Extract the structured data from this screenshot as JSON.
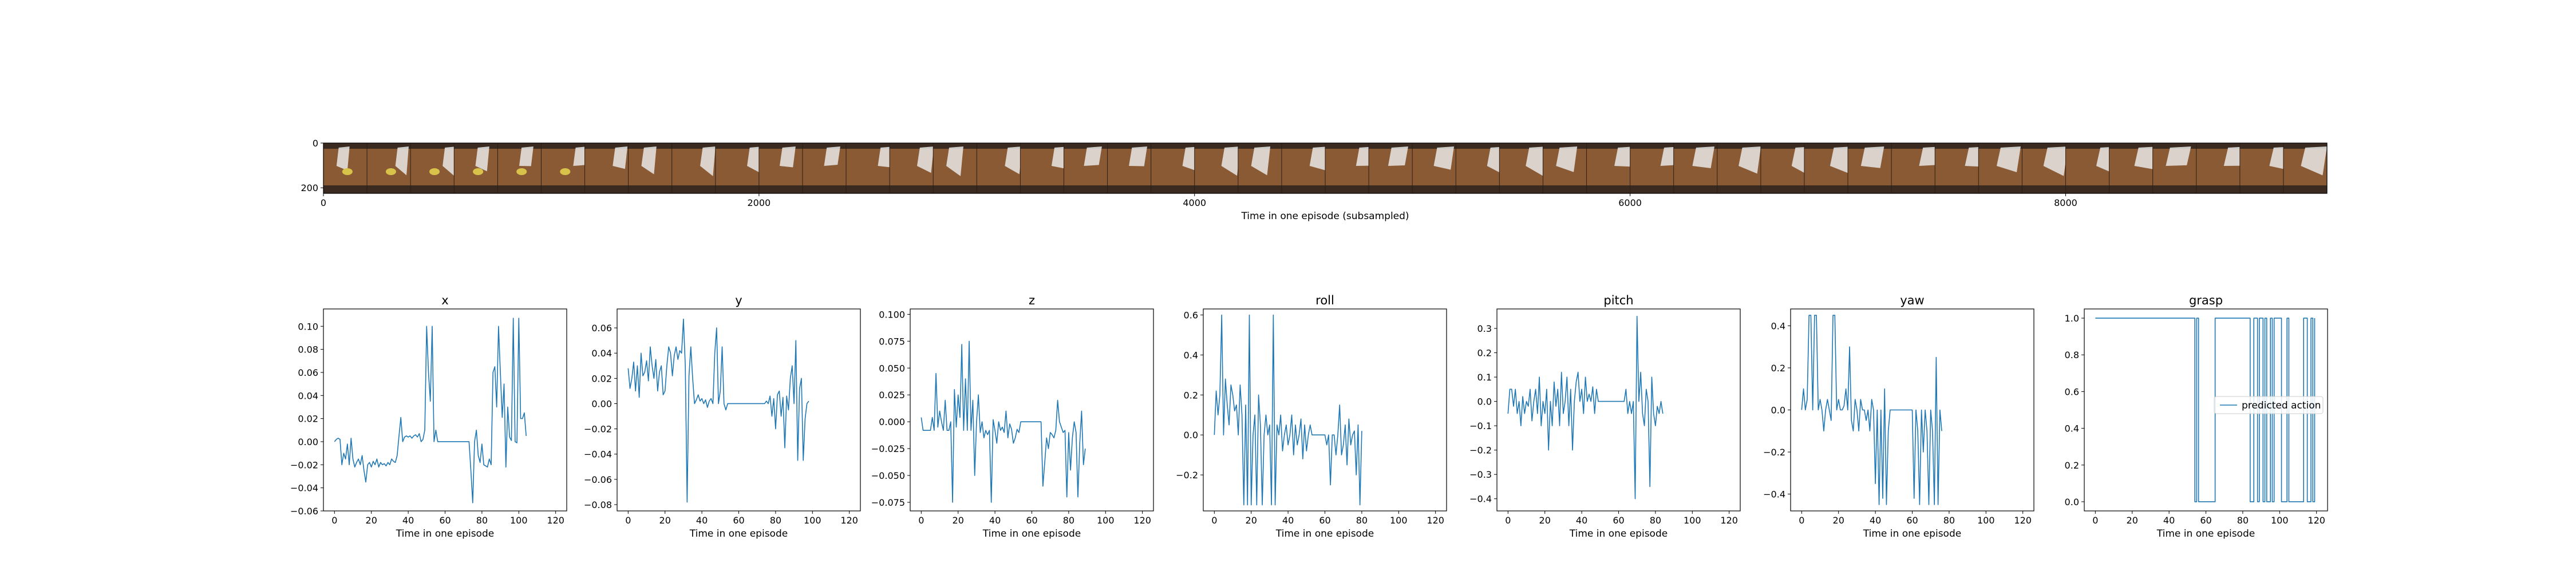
{
  "colors": {
    "series": "#1f77b4",
    "axes": "#000000",
    "background": "#ffffff",
    "legend_border": "#cccccc"
  },
  "image_strip": {
    "type": "image",
    "xlabel": "Time in one episode (subsampled)",
    "xticks": [
      0,
      2000,
      4000,
      6000,
      8000
    ],
    "yticks": [
      0,
      200
    ],
    "xlim": [
      0,
      9200
    ],
    "ylim": [
      225,
      0
    ],
    "frame_count": 46,
    "description_colors": {
      "wood": "#8a5a34",
      "dark": "#3a2a20",
      "cloth": "#e8e8e6",
      "yellow": "#d8c24a"
    }
  },
  "chart_data": [
    {
      "type": "line",
      "title": "x",
      "xlabel": "Time in one episode",
      "xlim": [
        -6,
        126
      ],
      "ylim": [
        -0.06,
        0.115
      ],
      "xticks": [
        0,
        20,
        40,
        60,
        80,
        100,
        120
      ],
      "yticks": [
        -0.06,
        -0.04,
        -0.02,
        0.0,
        0.02,
        0.04,
        0.06,
        0.08,
        0.1
      ],
      "ytick_labels": [
        "−0.06",
        "−0.04",
        "−0.02",
        "0.00",
        "0.02",
        "0.04",
        "0.06",
        "0.08",
        "0.10"
      ],
      "series": [
        {
          "values": [
            0.0,
            0.002,
            0.003,
            0.002,
            -0.02,
            -0.01,
            -0.015,
            -0.002,
            -0.02,
            0.003,
            -0.015,
            -0.022,
            -0.018,
            -0.015,
            -0.02,
            -0.012,
            -0.025,
            -0.035,
            -0.02,
            -0.018,
            -0.022,
            -0.017,
            -0.02,
            -0.015,
            -0.022,
            -0.018,
            -0.02,
            -0.019,
            -0.021,
            -0.018,
            -0.02,
            -0.015,
            -0.017,
            -0.018,
            -0.012,
            0.005,
            0.021,
            0.0,
            0.004,
            0.005,
            0.004,
            0.005,
            0.003,
            0.005,
            0.006,
            0.004,
            0.007,
            0.0,
            0.002,
            0.01,
            0.1,
            0.06,
            0.035,
            0.1,
            0.0,
            0.01,
            0.0,
            0.0,
            0.0,
            0.0,
            0.0,
            0.0,
            0.0,
            0.0,
            0.0,
            0.0,
            0.0,
            0.0,
            0.0,
            0.0,
            0.0,
            0.0,
            0.0,
            0.0,
            -0.025,
            -0.053,
            0.0,
            0.01,
            -0.012,
            -0.018,
            -0.002,
            -0.02,
            -0.021,
            -0.022,
            -0.015,
            -0.02,
            0.06,
            0.065,
            0.03,
            0.1,
            0.06,
            0.021,
            0.05,
            -0.022,
            0.03,
            0.004,
            0.001,
            0.107,
            0.0,
            -0.001,
            0.107,
            0.02,
            0.02,
            0.025,
            0.005
          ]
        }
      ]
    },
    {
      "type": "line",
      "title": "y",
      "xlabel": "Time in one episode",
      "xlim": [
        -6,
        126
      ],
      "ylim": [
        -0.085,
        0.075
      ],
      "xticks": [
        0,
        20,
        40,
        60,
        80,
        100,
        120
      ],
      "yticks": [
        -0.08,
        -0.06,
        -0.04,
        -0.02,
        0.0,
        0.02,
        0.04,
        0.06
      ],
      "ytick_labels": [
        "−0.08",
        "−0.06",
        "−0.04",
        "−0.02",
        "0.00",
        "0.02",
        "0.04",
        "0.06"
      ],
      "series": [
        {
          "values": [
            0.028,
            0.012,
            0.02,
            0.033,
            0.01,
            0.03,
            0.005,
            0.04,
            0.022,
            0.025,
            0.034,
            0.018,
            0.045,
            0.03,
            0.02,
            0.035,
            0.01,
            0.025,
            0.03,
            0.007,
            0.01,
            0.03,
            0.045,
            0.04,
            0.022,
            0.038,
            0.045,
            0.035,
            0.042,
            0.04,
            0.067,
            0.03,
            -0.078,
            0.022,
            0.045,
            0.02,
            0.0,
            0.003,
            0.007,
            0.002,
            0.004,
            0.0,
            0.003,
            -0.003,
            0.002,
            0.004,
            0.0,
            0.04,
            0.06,
            0.0,
            0.01,
            0.045,
            0.0,
            -0.005,
            0.0,
            0.0,
            0.0,
            0.0,
            0.0,
            0.0,
            0.0,
            0.0,
            0.0,
            0.0,
            0.0,
            0.0,
            0.0,
            0.0,
            0.0,
            0.0,
            0.0,
            0.0,
            0.0,
            0.0,
            0.0,
            0.002,
            0.0,
            0.006,
            -0.01,
            0.004,
            -0.02,
            0.007,
            0.01,
            -0.01,
            0.005,
            -0.035,
            0.006,
            -0.005,
            0.02,
            0.03,
            0.0,
            0.05,
            -0.045,
            0.012,
            0.02,
            -0.045,
            -0.012,
            0.0,
            0.002
          ]
        }
      ]
    },
    {
      "type": "line",
      "title": "z",
      "xlabel": "Time in one episode",
      "xlim": [
        -6,
        126
      ],
      "ylim": [
        -0.083,
        0.105
      ],
      "xticks": [
        0,
        20,
        40,
        60,
        80,
        100,
        120
      ],
      "yticks": [
        -0.075,
        -0.05,
        -0.025,
        0.0,
        0.025,
        0.05,
        0.075,
        0.1
      ],
      "ytick_labels": [
        "−0.075",
        "−0.050",
        "−0.025",
        "0.000",
        "0.025",
        "0.050",
        "0.075",
        "0.100"
      ],
      "series": [
        {
          "values": [
            0.004,
            -0.008,
            -0.008,
            -0.008,
            -0.008,
            -0.008,
            0.004,
            -0.008,
            0.045,
            -0.005,
            0.01,
            0.0,
            -0.008,
            0.02,
            -0.008,
            -0.008,
            0.0,
            -0.075,
            0.03,
            -0.005,
            0.025,
            0.004,
            0.072,
            -0.008,
            0.04,
            -0.008,
            0.075,
            -0.008,
            0.02,
            -0.05,
            0.0,
            0.025,
            -0.01,
            0.0,
            -0.015,
            -0.008,
            -0.012,
            -0.008,
            -0.075,
            0.002,
            -0.008,
            -0.02,
            0.0,
            -0.008,
            -0.005,
            -0.01,
            0.01,
            -0.015,
            -0.002,
            -0.007,
            -0.02,
            -0.015,
            -0.007,
            -0.01,
            0.0,
            0.0,
            0.0,
            0.0,
            0.0,
            0.0,
            0.0,
            0.0,
            0.0,
            0.0,
            0.0,
            0.0,
            -0.06,
            -0.038,
            -0.015,
            -0.025,
            -0.01,
            -0.012,
            -0.015,
            -0.008,
            0.02,
            0.0,
            -0.005,
            -0.01,
            -0.008,
            -0.07,
            -0.01,
            -0.045,
            -0.015,
            0.0,
            -0.01,
            -0.07,
            -0.02,
            0.01,
            -0.04,
            -0.025
          ]
        }
      ]
    },
    {
      "type": "line",
      "title": "roll",
      "xlabel": "Time in one episode",
      "xlim": [
        -6,
        126
      ],
      "ylim": [
        -0.38,
        0.63
      ],
      "xticks": [
        0,
        20,
        40,
        60,
        80,
        100,
        120
      ],
      "yticks": [
        -0.2,
        0.0,
        0.2,
        0.4,
        0.6
      ],
      "ytick_labels": [
        "−0.2",
        "0.0",
        "0.2",
        "0.4",
        "0.6"
      ],
      "series": [
        {
          "values": [
            0.0,
            0.22,
            0.1,
            0.2,
            0.6,
            0.0,
            0.28,
            0.15,
            0.05,
            0.25,
            0.2,
            0.12,
            0.15,
            0.0,
            0.25,
            0.1,
            -0.35,
            0.15,
            -0.35,
            0.6,
            -0.35,
            0.0,
            0.1,
            -0.35,
            0.2,
            0.05,
            -0.35,
            0.0,
            0.1,
            0.0,
            0.05,
            -0.35,
            0.6,
            -0.35,
            0.05,
            0.0,
            0.1,
            -0.08,
            0.0,
            0.05,
            -0.05,
            0.0,
            0.1,
            -0.1,
            0.05,
            -0.05,
            0.0,
            0.08,
            -0.12,
            0.05,
            -0.08,
            0.0,
            0.05,
            0.0,
            0.0,
            0.0,
            0.0,
            0.0,
            0.0,
            0.0,
            0.0,
            -0.05,
            0.0,
            -0.25,
            0.0,
            0.0,
            -0.1,
            0.0,
            0.15,
            -0.1,
            -0.05,
            0.05,
            -0.15,
            0.08,
            -0.05,
            0.0,
            0.02,
            -0.2,
            0.05,
            -0.35,
            0.02
          ]
        }
      ]
    },
    {
      "type": "line",
      "title": "pitch",
      "xlabel": "Time in one episode",
      "xlim": [
        -6,
        126
      ],
      "ylim": [
        -0.45,
        0.38
      ],
      "xticks": [
        0,
        20,
        40,
        60,
        80,
        100,
        120
      ],
      "yticks": [
        -0.4,
        -0.3,
        -0.2,
        -0.1,
        0.0,
        0.1,
        0.2,
        0.3
      ],
      "ytick_labels": [
        "−0.4",
        "−0.3",
        "−0.2",
        "−0.1",
        "0.0",
        "0.1",
        "0.2",
        "0.3"
      ],
      "series": [
        {
          "values": [
            -0.05,
            0.05,
            0.05,
            -0.02,
            0.05,
            -0.05,
            0.0,
            -0.1,
            0.02,
            -0.05,
            0.0,
            -0.02,
            0.05,
            -0.08,
            0.0,
            0.05,
            -0.05,
            0.1,
            -0.1,
            0.0,
            -0.05,
            0.05,
            -0.2,
            0.0,
            -0.1,
            0.08,
            -0.02,
            0.05,
            -0.1,
            0.12,
            -0.05,
            0.0,
            0.1,
            -0.1,
            0.05,
            -0.2,
            0.0,
            0.08,
            0.12,
            0.0,
            0.05,
            -0.05,
            0.1,
            0.0,
            0.03,
            0.0,
            0.06,
            -0.05,
            0.05,
            0.0,
            0.0,
            0.0,
            0.0,
            0.0,
            0.0,
            0.0,
            0.0,
            0.0,
            0.0,
            0.0,
            0.0,
            0.0,
            0.0,
            0.0,
            0.05,
            -0.05,
            0.0,
            -0.05,
            0.0,
            -0.4,
            0.35,
            0.0,
            0.12,
            -0.05,
            -0.1,
            0.05,
            0.0,
            -0.35,
            0.1,
            -0.05,
            -0.1,
            -0.02,
            -0.05,
            0.0,
            -0.05
          ]
        }
      ]
    },
    {
      "type": "line",
      "title": "yaw",
      "xlabel": "Time in one episode",
      "xlim": [
        -6,
        126
      ],
      "ylim": [
        -0.48,
        0.48
      ],
      "xticks": [
        0,
        20,
        40,
        60,
        80,
        100,
        120
      ],
      "yticks": [
        -0.4,
        -0.2,
        0.0,
        0.2,
        0.4
      ],
      "ytick_labels": [
        "−0.4",
        "−0.2",
        "0.0",
        "0.2",
        "0.4"
      ],
      "series": [
        {
          "values": [
            0.0,
            0.1,
            0.0,
            0.05,
            0.45,
            0.45,
            0.0,
            0.45,
            0.45,
            0.0,
            0.05,
            0.0,
            -0.1,
            0.0,
            0.05,
            0.0,
            -0.05,
            0.45,
            0.45,
            0.0,
            0.05,
            0.0,
            0.0,
            0.02,
            0.1,
            0.0,
            0.3,
            -0.05,
            -0.1,
            0.05,
            0.0,
            -0.1,
            0.05,
            0.0,
            0.0,
            -0.05,
            0.0,
            -0.1,
            0.05,
            0.0,
            -0.35,
            0.0,
            -0.45,
            0.0,
            -0.42,
            0.1,
            -0.45,
            -0.1,
            0.0,
            0.0,
            0.0,
            0.0,
            0.0,
            0.0,
            0.0,
            0.0,
            0.0,
            0.0,
            0.0,
            0.0,
            0.0,
            -0.42,
            0.0,
            -0.1,
            -0.45,
            0.0,
            -0.2,
            0.0,
            -0.1,
            -0.45,
            0.0,
            -0.1,
            -0.45,
            0.25,
            -0.45,
            0.0,
            -0.1
          ]
        }
      ]
    },
    {
      "type": "line",
      "title": "grasp",
      "xlabel": "Time in one episode",
      "xlim": [
        -6,
        126
      ],
      "ylim": [
        -0.05,
        1.05
      ],
      "xticks": [
        0,
        20,
        40,
        60,
        80,
        100,
        120
      ],
      "yticks": [
        0.0,
        0.2,
        0.4,
        0.6,
        0.8,
        1.0
      ],
      "ytick_labels": [
        "0.0",
        "0.2",
        "0.4",
        "0.6",
        "0.8",
        "1.0"
      ],
      "legend": {
        "label": "predicted action",
        "placement": "right"
      },
      "series": [
        {
          "name": "predicted action",
          "points": [
            [
              0,
              1.0
            ],
            [
              54,
              1.0
            ],
            [
              54,
              0.0
            ],
            [
              55,
              0.0
            ],
            [
              55,
              1.0
            ],
            [
              56,
              1.0
            ],
            [
              56,
              0.0
            ],
            [
              65,
              0.0
            ],
            [
              65,
              1.0
            ],
            [
              84,
              1.0
            ],
            [
              84,
              0.0
            ],
            [
              86,
              0.0
            ],
            [
              86,
              1.0
            ],
            [
              88,
              1.0
            ],
            [
              88,
              0.0
            ],
            [
              89,
              0.0
            ],
            [
              89,
              1.0
            ],
            [
              91,
              1.0
            ],
            [
              91,
              0.0
            ],
            [
              92,
              0.0
            ],
            [
              92,
              1.0
            ],
            [
              93,
              1.0
            ],
            [
              93,
              0.0
            ],
            [
              95,
              0.0
            ],
            [
              95,
              1.0
            ],
            [
              96,
              1.0
            ],
            [
              96,
              0.0
            ],
            [
              97,
              0.0
            ],
            [
              97,
              1.0
            ],
            [
              101,
              1.0
            ],
            [
              101,
              0.0
            ],
            [
              104,
              0.0
            ],
            [
              104,
              1.0
            ],
            [
              105,
              1.0
            ],
            [
              105,
              0.0
            ],
            [
              113,
              0.0
            ],
            [
              113,
              1.0
            ],
            [
              115,
              1.0
            ],
            [
              115,
              0.0
            ],
            [
              117,
              0.0
            ],
            [
              117,
              1.0
            ],
            [
              118,
              1.0
            ],
            [
              118,
              0.0
            ],
            [
              119,
              0.0
            ],
            [
              119,
              1.0
            ]
          ]
        }
      ]
    }
  ]
}
